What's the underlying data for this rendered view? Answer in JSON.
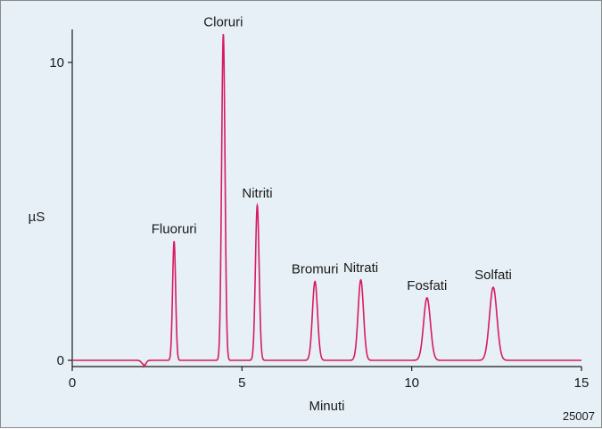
{
  "chart_data": {
    "type": "line",
    "xlabel": "Minuti",
    "ylabel": "µS",
    "xlim": [
      0,
      15
    ],
    "ylim": [
      -0.15,
      10.7
    ],
    "xticks": [
      0,
      5,
      10,
      15
    ],
    "yticks": [
      0,
      10
    ],
    "grid": false,
    "legend": "none",
    "figure_code": "25007",
    "baseline": 0,
    "dip": {
      "x": 2.1,
      "y": -0.22
    },
    "peaks": [
      {
        "label": "Fluoruri",
        "x": 3.0,
        "y": 4.0,
        "width": 0.045
      },
      {
        "label": "Cloruri",
        "x": 4.45,
        "y": 10.95,
        "width": 0.05
      },
      {
        "label": "Nitriti",
        "x": 5.45,
        "y": 5.2,
        "width": 0.055
      },
      {
        "label": "Bromuri",
        "x": 7.15,
        "y": 2.65,
        "width": 0.075
      },
      {
        "label": "Nitrati",
        "x": 8.5,
        "y": 2.7,
        "width": 0.08
      },
      {
        "label": "Fosfati",
        "x": 10.45,
        "y": 2.1,
        "width": 0.1
      },
      {
        "label": "Solfati",
        "x": 12.4,
        "y": 2.45,
        "width": 0.11
      }
    ],
    "colors": {
      "signal": "#d81b60",
      "axis": "#1a1a1a",
      "background": "#e6f0f6"
    }
  }
}
